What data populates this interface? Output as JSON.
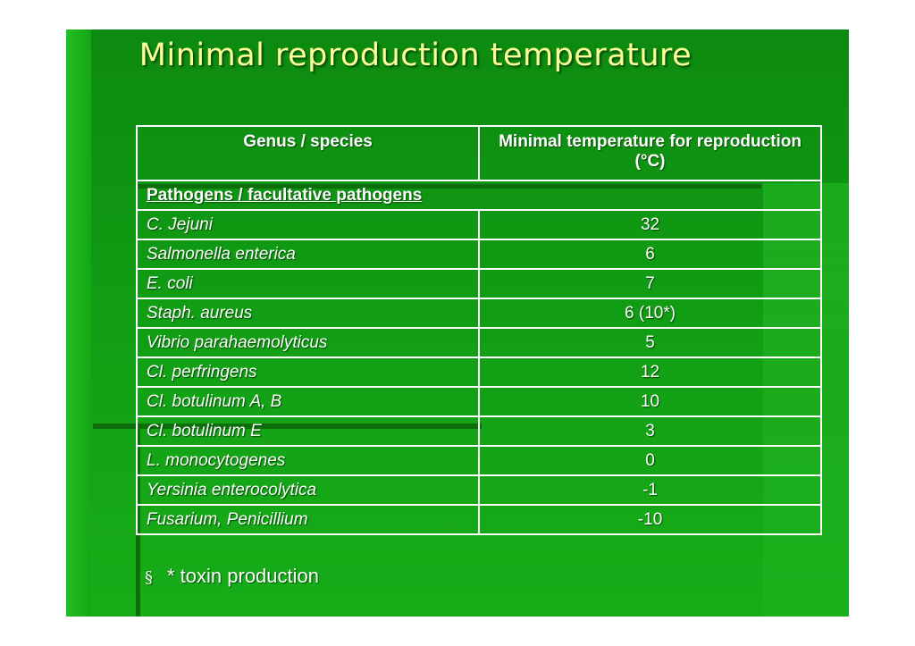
{
  "title": "Minimal reproduction temperature",
  "table": {
    "headers": [
      "Genus / species",
      "Minimal temperature for reproduction (°C)"
    ],
    "section": "Pathogens / facultative pathogens",
    "rows": [
      {
        "species": "C. Jejuni",
        "value": "32"
      },
      {
        "species": "Salmonella enterica",
        "value": "6"
      },
      {
        "species": "E. coli",
        "value": "7"
      },
      {
        "species": "Staph. aureus",
        "value": "6 (10*)"
      },
      {
        "species": "Vibrio parahaemolyticus",
        "value": "5"
      },
      {
        "species": "Cl. perfringens",
        "value": "12"
      },
      {
        "species": "Cl. botulinum A, B",
        "value": "10"
      },
      {
        "species": "Cl. botulinum E",
        "value": "3"
      },
      {
        "species": "L. monocytogenes",
        "value": "0"
      },
      {
        "species": "Yersinia enterocolytica",
        "value": "-1"
      },
      {
        "species": "Fusarium, Penicillium",
        "value": "-10"
      }
    ]
  },
  "footnote": {
    "bullet": "§",
    "text": "* toxin production"
  }
}
